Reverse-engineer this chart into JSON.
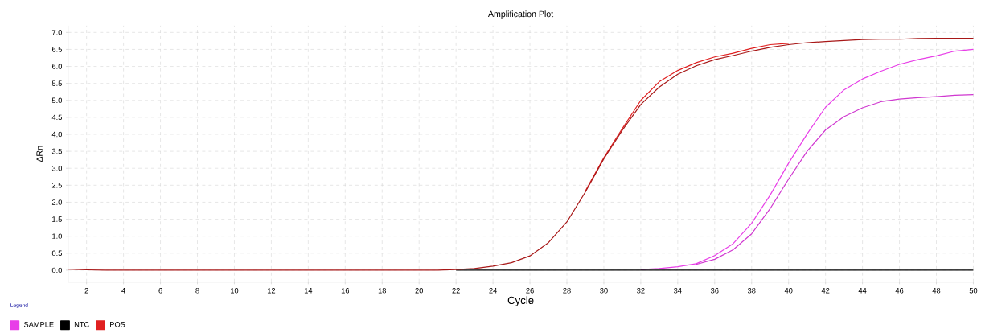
{
  "chart_data": {
    "type": "line",
    "title": "Amplification Plot",
    "xlabel": "Cycle",
    "ylabel": "ΔRn",
    "legend_title": "Legend",
    "x": [
      1,
      2,
      3,
      4,
      5,
      6,
      7,
      8,
      9,
      10,
      11,
      12,
      13,
      14,
      15,
      16,
      17,
      18,
      19,
      20,
      21,
      22,
      23,
      24,
      25,
      26,
      27,
      28,
      29,
      30,
      31,
      32,
      33,
      34,
      35,
      36,
      37,
      38,
      39,
      40,
      41,
      42,
      43,
      44,
      45,
      46,
      47,
      48,
      49,
      50
    ],
    "series": [
      {
        "name": "SAMPLE",
        "color": "#e83ee8",
        "values": [
          null,
          null,
          null,
          null,
          null,
          null,
          null,
          null,
          null,
          null,
          null,
          null,
          null,
          null,
          null,
          null,
          null,
          null,
          null,
          null,
          null,
          null,
          null,
          null,
          null,
          null,
          null,
          null,
          null,
          null,
          null,
          0.02,
          0.05,
          0.1,
          0.19,
          0.43,
          0.78,
          1.38,
          2.21,
          3.15,
          4.01,
          4.8,
          5.31,
          5.63,
          5.86,
          6.06,
          6.2,
          6.31,
          6.45,
          6.5
        ]
      },
      {
        "color": "#d038d0",
        "values": [
          null,
          null,
          null,
          null,
          null,
          null,
          null,
          null,
          null,
          null,
          null,
          null,
          null,
          null,
          null,
          null,
          null,
          null,
          null,
          null,
          null,
          null,
          null,
          null,
          null,
          null,
          null,
          null,
          null,
          null,
          null,
          null,
          null,
          null,
          0.17,
          0.32,
          0.6,
          1.07,
          1.81,
          2.68,
          3.5,
          4.13,
          4.52,
          4.78,
          4.96,
          5.04,
          5.08,
          5.11,
          5.15,
          5.17
        ]
      },
      {
        "name": "NTC",
        "color": "#000000",
        "values": [
          null,
          null,
          null,
          null,
          null,
          null,
          null,
          null,
          null,
          null,
          null,
          null,
          null,
          null,
          null,
          null,
          null,
          null,
          null,
          null,
          null,
          0,
          0,
          0,
          0,
          0,
          0,
          0,
          0,
          0,
          0,
          0,
          0,
          0,
          0,
          0,
          0,
          0,
          0,
          0,
          0,
          0,
          0,
          0,
          0,
          0,
          0,
          0,
          0,
          0
        ]
      },
      {
        "name": "POS",
        "color": "#e02020",
        "values": [
          null,
          null,
          null,
          null,
          null,
          null,
          null,
          null,
          null,
          null,
          null,
          null,
          null,
          null,
          null,
          null,
          null,
          null,
          null,
          null,
          null,
          null,
          null,
          null,
          null,
          null,
          null,
          null,
          2.33,
          3.31,
          4.17,
          5.0,
          5.55,
          5.88,
          6.11,
          6.28,
          6.39,
          6.53,
          6.64,
          6.68,
          null,
          null,
          null,
          null,
          null,
          null,
          null,
          null,
          null,
          null
        ]
      },
      {
        "color": "#a81818",
        "values": [
          0.03,
          0.01,
          0,
          0,
          0,
          0,
          0,
          0,
          0,
          0,
          0,
          0,
          0,
          0,
          0,
          0,
          0,
          0,
          0,
          0,
          0,
          0.02,
          0.05,
          0.12,
          0.22,
          0.42,
          0.81,
          1.42,
          2.3,
          3.28,
          4.12,
          4.88,
          5.39,
          5.77,
          6.02,
          6.2,
          6.32,
          6.45,
          6.56,
          6.64,
          6.7,
          6.73,
          6.76,
          6.79,
          6.8,
          6.8,
          6.82,
          6.83,
          6.83,
          6.83
        ]
      }
    ],
    "xlim": [
      1,
      50
    ],
    "ylim": [
      -0.35,
      7.2
    ],
    "xticks": [
      2,
      4,
      6,
      8,
      10,
      12,
      14,
      16,
      18,
      20,
      22,
      24,
      26,
      28,
      30,
      32,
      34,
      36,
      38,
      40,
      42,
      44,
      46,
      48,
      50
    ],
    "yticks": [
      {
        "value": 0,
        "label": "0.0"
      },
      {
        "value": 0.5,
        "label": "0.5"
      },
      {
        "value": 1,
        "label": "1.0"
      },
      {
        "value": 1.5,
        "label": "1.5"
      },
      {
        "value": 2,
        "label": "2.0"
      },
      {
        "value": 2.5,
        "label": "2.5"
      },
      {
        "value": 3,
        "label": "3.0"
      },
      {
        "value": 3.5,
        "label": "3.5"
      },
      {
        "value": 4,
        "label": "4.0"
      },
      {
        "value": 4.5,
        "label": "4.5"
      },
      {
        "value": 5,
        "label": "5.0"
      },
      {
        "value": 5.5,
        "label": "5.5"
      },
      {
        "value": 6,
        "label": "6.0"
      },
      {
        "value": 6.5,
        "label": "6.5"
      },
      {
        "value": 7,
        "label": "7.0"
      }
    ],
    "grid": true,
    "legend": "bottom left",
    "marker": "none",
    "line_style": "solid"
  }
}
